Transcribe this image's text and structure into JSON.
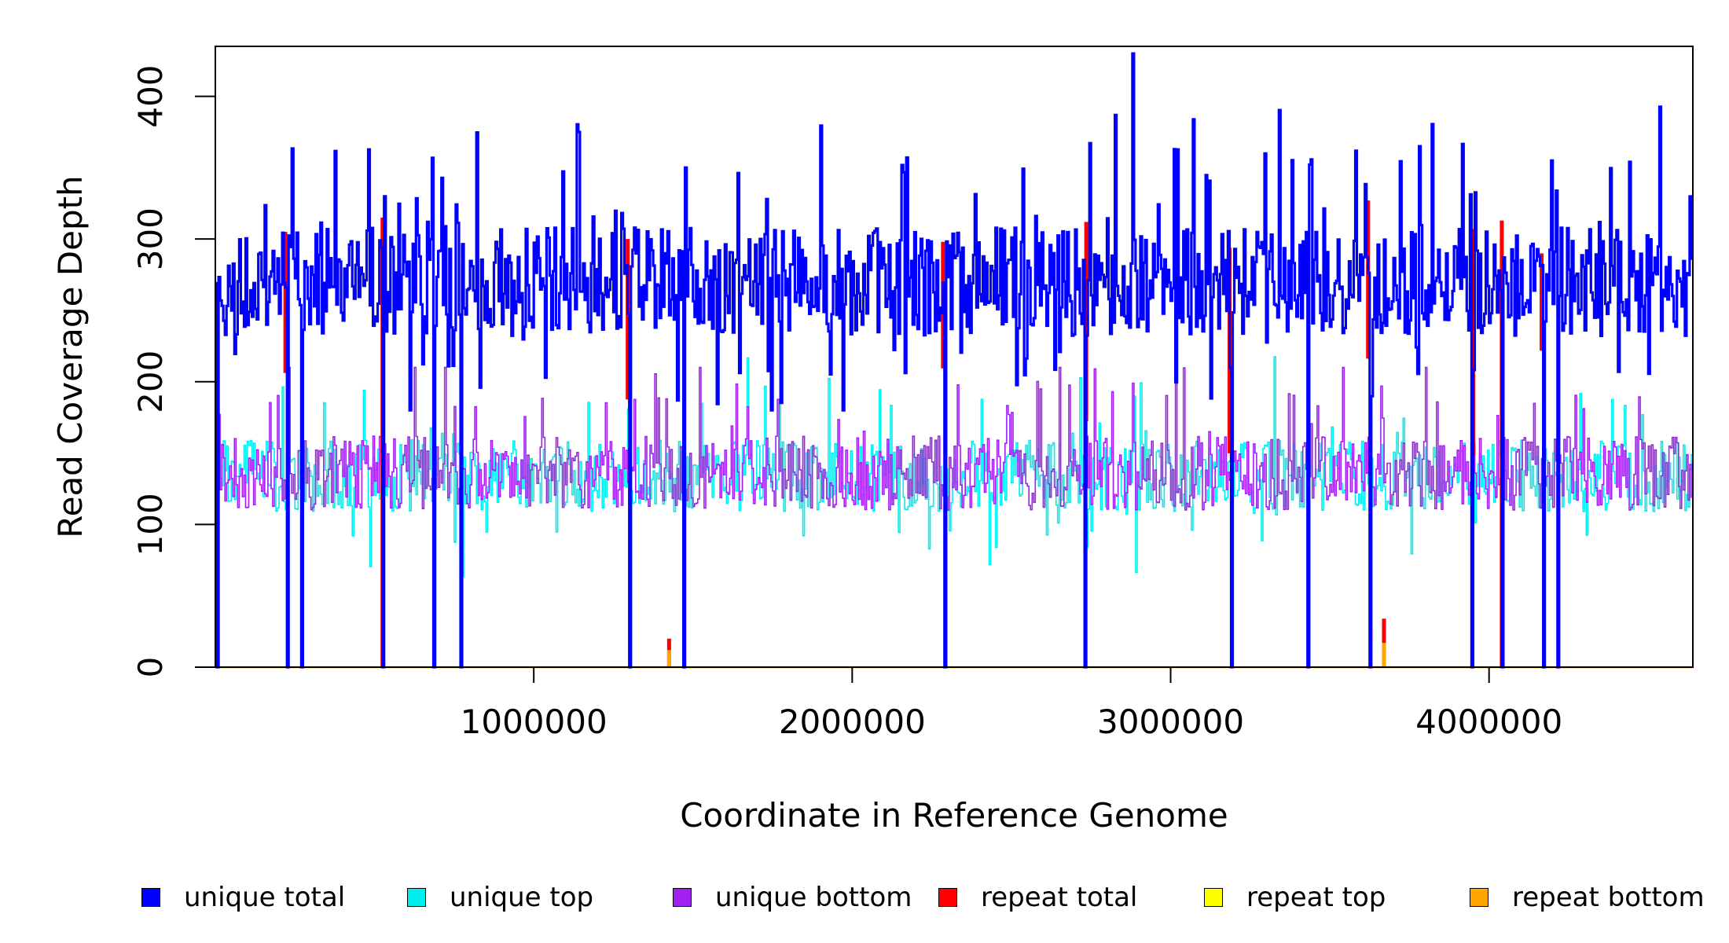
{
  "chart_data": {
    "type": "line",
    "xlabel": "Coordinate in Reference Genome",
    "ylabel": "Read Coverage Depth",
    "xlim": [
      0,
      4640000
    ],
    "ylim": [
      0,
      435
    ],
    "x_ticks": [
      1000000,
      2000000,
      3000000,
      4000000
    ],
    "x_tick_labels": [
      "1000000",
      "2000000",
      "3000000",
      "4000000"
    ],
    "y_ticks": [
      0,
      100,
      200,
      300,
      400
    ],
    "y_tick_labels": [
      "0",
      "100",
      "200",
      "300",
      "400"
    ],
    "grid": false,
    "legend_position": "bottom",
    "bin_size": 5000,
    "colors": {
      "unique_total": "#0000ff",
      "unique_top": "#00eeee",
      "unique_bottom": "#a020f0",
      "repeat_total": "#ff0000",
      "repeat_top": "#ffff00",
      "repeat_bottom": "#ffa500"
    },
    "series": [
      {
        "name": "unique total",
        "key": "unique_total",
        "baseline": 270,
        "noise": 38,
        "min": 180,
        "max": 430
      },
      {
        "name": "unique top",
        "key": "unique_top",
        "baseline": 134,
        "noise": 25,
        "min": 60,
        "max": 230
      },
      {
        "name": "unique bottom",
        "key": "unique_bottom",
        "baseline": 136,
        "noise": 26,
        "min": 80,
        "max": 210
      },
      {
        "name": "repeat total",
        "key": "repeat_total",
        "baseline": 0
      },
      {
        "name": "repeat top",
        "key": "repeat_top",
        "baseline": 0
      },
      {
        "name": "repeat bottom",
        "key": "repeat_bottom",
        "baseline": 0
      }
    ],
    "coverage_gaps": [
      5000,
      225000,
      270000,
      525000,
      685000,
      770000,
      1300000,
      1470000,
      2290000,
      2730000,
      3190000,
      3430000,
      3625000,
      3945000,
      4040000,
      4170000,
      4215000
    ],
    "coverage_peaks": [
      {
        "x": 1140000,
        "value": 375
      },
      {
        "x": 2880000,
        "value": 430
      },
      {
        "x": 3010000,
        "value": 363
      },
      {
        "x": 3780000,
        "value": 365
      },
      {
        "x": 4195000,
        "value": 355
      }
    ],
    "repeat_regions": [
      {
        "x": 5000,
        "repeat_total": 135,
        "repeat_bottom": 62
      },
      {
        "x": 1425000,
        "repeat_total": 20,
        "repeat_bottom": 12
      },
      {
        "x": 3670000,
        "repeat_total": 34,
        "repeat_bottom": 17
      },
      {
        "x": 220000,
        "repeat_total": 305
      },
      {
        "x": 525000,
        "repeat_total": 315
      },
      {
        "x": 1295000,
        "repeat_total": 300
      },
      {
        "x": 2285000,
        "repeat_total": 298
      },
      {
        "x": 2735000,
        "repeat_total": 312
      },
      {
        "x": 3185000,
        "repeat_total": 294
      },
      {
        "x": 3620000,
        "repeat_total": 327
      },
      {
        "x": 3950000,
        "repeat_total": 307
      },
      {
        "x": 4040000,
        "repeat_total": 313
      },
      {
        "x": 4165000,
        "repeat_total": 290
      }
    ]
  },
  "legend": [
    {
      "label": "unique total",
      "color": "#0000ff"
    },
    {
      "label": "unique top",
      "color": "#00eeee"
    },
    {
      "label": "unique bottom",
      "color": "#a020f0"
    },
    {
      "label": "repeat total",
      "color": "#ff0000"
    },
    {
      "label": "repeat top",
      "color": "#ffff00"
    },
    {
      "label": "repeat bottom",
      "color": "#ffa500"
    }
  ]
}
